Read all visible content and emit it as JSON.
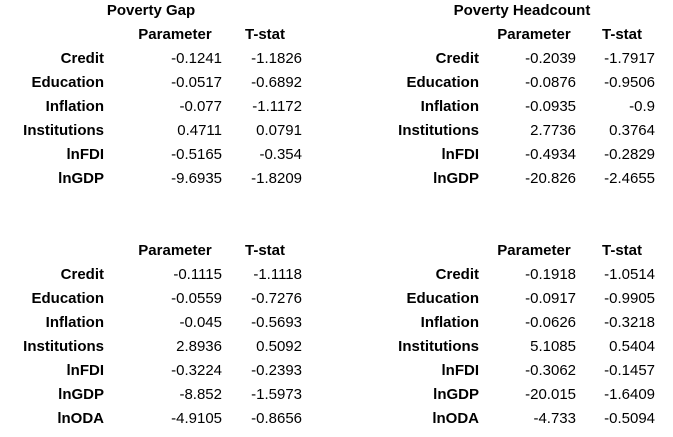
{
  "panels": [
    {
      "title": "Poverty Gap",
      "headers": {
        "parameter": "Parameter",
        "tstat": "T-stat"
      },
      "rows": [
        {
          "label": "Credit",
          "parameter": "-0.1241",
          "tstat": "-1.1826"
        },
        {
          "label": "Education",
          "parameter": "-0.0517",
          "tstat": "-0.6892"
        },
        {
          "label": "Inflation",
          "parameter": "-0.077",
          "tstat": "-1.1172"
        },
        {
          "label": "Institutions",
          "parameter": "0.4711",
          "tstat": "0.0791"
        },
        {
          "label": "lnFDI",
          "parameter": "-0.5165",
          "tstat": "-0.354"
        },
        {
          "label": "lnGDP",
          "parameter": "-9.6935",
          "tstat": "-1.8209"
        }
      ]
    },
    {
      "title": "Poverty Headcount",
      "headers": {
        "parameter": "Parameter",
        "tstat": "T-stat"
      },
      "rows": [
        {
          "label": "Credit",
          "parameter": "-0.2039",
          "tstat": "-1.7917"
        },
        {
          "label": "Education",
          "parameter": "-0.0876",
          "tstat": "-0.9506"
        },
        {
          "label": "Inflation",
          "parameter": "-0.0935",
          "tstat": "-0.9"
        },
        {
          "label": "Institutions",
          "parameter": "2.7736",
          "tstat": "0.3764"
        },
        {
          "label": "lnFDI",
          "parameter": "-0.4934",
          "tstat": "-0.2829"
        },
        {
          "label": "lnGDP",
          "parameter": "-20.826",
          "tstat": "-2.4655"
        }
      ]
    },
    {
      "title": "",
      "headers": {
        "parameter": "Parameter",
        "tstat": "T-stat"
      },
      "rows": [
        {
          "label": "Credit",
          "parameter": "-0.1115",
          "tstat": "-1.1118"
        },
        {
          "label": "Education",
          "parameter": "-0.0559",
          "tstat": "-0.7276"
        },
        {
          "label": "Inflation",
          "parameter": "-0.045",
          "tstat": "-0.5693"
        },
        {
          "label": "Institutions",
          "parameter": "2.8936",
          "tstat": "0.5092"
        },
        {
          "label": "lnFDI",
          "parameter": "-0.3224",
          "tstat": "-0.2393"
        },
        {
          "label": "lnGDP",
          "parameter": "-8.852",
          "tstat": "-1.5973"
        },
        {
          "label": "lnODA",
          "parameter": "-4.9105",
          "tstat": "-0.8656"
        }
      ]
    },
    {
      "title": "",
      "headers": {
        "parameter": "Parameter",
        "tstat": "T-stat"
      },
      "rows": [
        {
          "label": "Credit",
          "parameter": "-0.1918",
          "tstat": "-1.0514"
        },
        {
          "label": "Education",
          "parameter": "-0.0917",
          "tstat": "-0.9905"
        },
        {
          "label": "Inflation",
          "parameter": "-0.0626",
          "tstat": "-0.3218"
        },
        {
          "label": "Institutions",
          "parameter": "5.1085",
          "tstat": "0.5404"
        },
        {
          "label": "lnFDI",
          "parameter": "-0.3062",
          "tstat": "-0.1457"
        },
        {
          "label": "lnGDP",
          "parameter": "-20.015",
          "tstat": "-1.6409"
        },
        {
          "label": "lnODA",
          "parameter": "-4.733",
          "tstat": "-0.5094"
        }
      ]
    }
  ]
}
